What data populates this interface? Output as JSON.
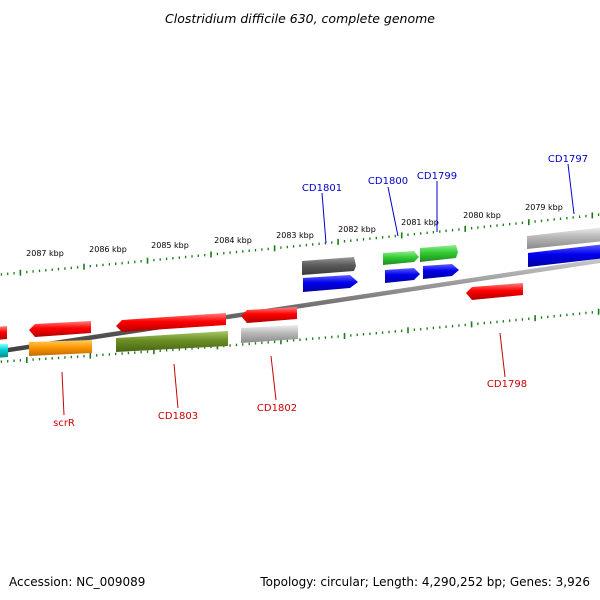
{
  "title": "Clostridium difficile 630, complete genome",
  "footer": {
    "accession": "Accession: NC_009089",
    "summary": "Topology: circular; Length: 4,290,252 bp; Genes: 3,926"
  },
  "kbp_ticks": [
    "2087 kbp",
    "2086 kbp",
    "2085 kbp",
    "2084 kbp",
    "2083 kbp",
    "2082 kbp",
    "2081 kbp",
    "2080 kbp",
    "2079 kbp"
  ],
  "forward_genes": [
    {
      "label": "CD1801",
      "color": "#0000cc"
    },
    {
      "label": "CD1800",
      "color": "#0000cc"
    },
    {
      "label": "CD1799",
      "color": "#0000cc"
    },
    {
      "label": "CD1797",
      "color": "#0000cc"
    }
  ],
  "reverse_genes": [
    {
      "label": "scrR",
      "color": "#cc0000"
    },
    {
      "label": "CD1803",
      "color": "#cc0000"
    },
    {
      "label": "CD1802",
      "color": "#cc0000"
    },
    {
      "label": "CD1798",
      "color": "#cc0000"
    }
  ],
  "colors": {
    "backbone": "#8a8a8a",
    "ticks": "#1a7a1a",
    "red": "#ff0000",
    "blue": "#0000ee",
    "green": "#33cc33",
    "dark_gray": "#5a5a5a",
    "light_gray": "#b8b8b8",
    "olive": "#6b8e23",
    "orange": "#ff9900",
    "cyan": "#00cccc"
  }
}
